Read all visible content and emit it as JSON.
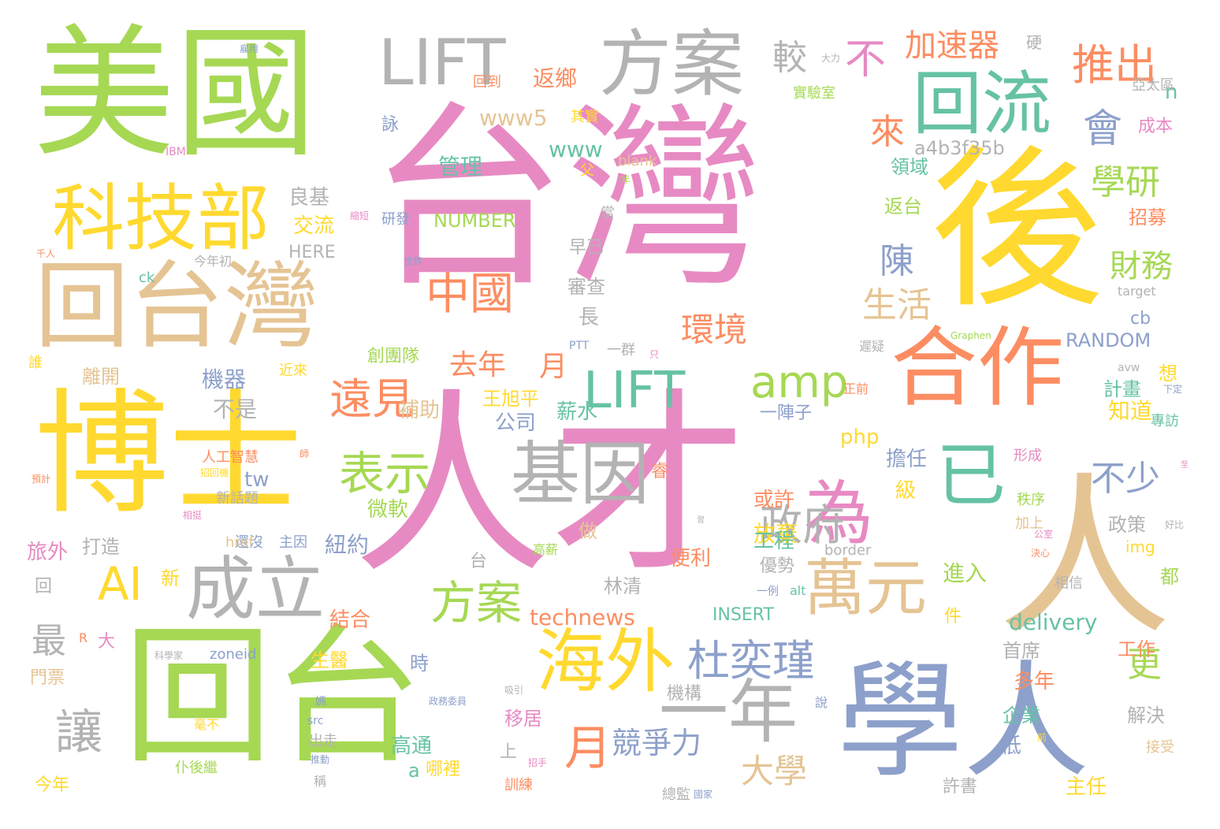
{
  "palette": {
    "pink": "#e78ac3",
    "green": "#a6d854",
    "yellow": "#ffd92f",
    "orange": "#fc8d62",
    "blue": "#8da0cb",
    "teal": "#66c2a5",
    "tan": "#e5c494",
    "gray": "#b3b3b3"
  },
  "words": [
    {
      "text": "台灣",
      "color": "pink",
      "size": 250
    },
    {
      "text": "人才",
      "color": "pink",
      "size": 250
    },
    {
      "text": "美國",
      "color": "green",
      "size": 180
    },
    {
      "text": "博士",
      "color": "yellow",
      "size": 170
    },
    {
      "text": "後",
      "color": "yellow",
      "size": 220
    },
    {
      "text": "學人",
      "color": "blue",
      "size": 160
    },
    {
      "text": "人",
      "color": "tan",
      "size": 220
    },
    {
      "text": "回台",
      "color": "green",
      "size": 190
    },
    {
      "text": "回台灣",
      "color": "tan",
      "size": 120
    },
    {
      "text": "合作",
      "color": "orange",
      "size": 110
    },
    {
      "text": "科技部",
      "color": "yellow",
      "size": 92
    },
    {
      "text": "方案",
      "color": "gray",
      "size": 92
    },
    {
      "text": "LIFT",
      "color": "gray",
      "size": 80
    },
    {
      "text": "回流",
      "color": "teal",
      "size": 88
    },
    {
      "text": "基因",
      "color": "gray",
      "size": 88
    },
    {
      "text": "成立",
      "color": "gray",
      "size": 88
    },
    {
      "text": "海外",
      "color": "yellow",
      "size": 88
    },
    {
      "text": "一年",
      "color": "gray",
      "size": 88
    },
    {
      "text": "萬元",
      "color": "tan",
      "size": 78
    },
    {
      "text": "已",
      "color": "teal",
      "size": 88
    },
    {
      "text": "為",
      "color": "pink",
      "size": 88
    },
    {
      "text": "AI",
      "color": "yellow",
      "size": 58
    },
    {
      "text": "LIFT",
      "color": "teal",
      "size": 64
    },
    {
      "text": "amp",
      "color": "green",
      "size": 56
    },
    {
      "text": "中國",
      "color": "orange",
      "size": 56
    },
    {
      "text": "表示",
      "color": "green",
      "size": 58
    },
    {
      "text": "方案",
      "color": "green",
      "size": 58
    },
    {
      "text": "遠見",
      "color": "orange",
      "size": 54
    },
    {
      "text": "杜奕瑾",
      "color": "blue",
      "size": 54
    },
    {
      "text": "政府",
      "color": "gray",
      "size": 54
    },
    {
      "text": "推出",
      "color": "orange",
      "size": 54
    },
    {
      "text": "不",
      "color": "pink",
      "size": 52
    },
    {
      "text": "會",
      "color": "blue",
      "size": 50
    },
    {
      "text": "較",
      "color": "gray",
      "size": 44
    },
    {
      "text": "來",
      "color": "orange",
      "size": 44
    },
    {
      "text": "學研",
      "color": "green",
      "size": 44
    },
    {
      "text": "加速器",
      "color": "orange",
      "size": 40
    },
    {
      "text": "陳",
      "color": "blue",
      "size": 44
    },
    {
      "text": "生活",
      "color": "tan",
      "size": 44
    },
    {
      "text": "環境",
      "color": "orange",
      "size": 42
    },
    {
      "text": "財務",
      "color": "green",
      "size": 40
    },
    {
      "text": "不少",
      "color": "blue",
      "size": 44
    },
    {
      "text": "去年",
      "color": "orange",
      "size": 36
    },
    {
      "text": "月",
      "color": "orange",
      "size": 36
    },
    {
      "text": "月",
      "color": "orange",
      "size": 60
    },
    {
      "text": "競爭力",
      "color": "blue",
      "size": 38
    },
    {
      "text": "大學",
      "color": "tan",
      "size": 42
    },
    {
      "text": "更",
      "color": "green",
      "size": 44
    },
    {
      "text": "讓",
      "color": "gray",
      "size": 60
    },
    {
      "text": "最",
      "color": "gray",
      "size": 44
    },
    {
      "text": "www5",
      "color": "tan",
      "size": 28
    },
    {
      "text": "www",
      "color": "teal",
      "size": 28
    },
    {
      "text": "返鄉",
      "color": "orange",
      "size": 28
    },
    {
      "text": "管理",
      "color": "teal",
      "size": 28
    },
    {
      "text": "NUMBER",
      "color": "green",
      "size": 24
    },
    {
      "text": "a4b3f35b",
      "color": "gray",
      "size": 24
    },
    {
      "text": "technews",
      "color": "orange",
      "size": 28
    },
    {
      "text": "delivery",
      "color": "teal",
      "size": 28
    },
    {
      "text": "RANDOM",
      "color": "blue",
      "size": 24
    },
    {
      "text": "INSERT",
      "color": "teal",
      "size": 22
    },
    {
      "text": "php",
      "color": "yellow",
      "size": 26
    },
    {
      "text": "tw",
      "color": "blue",
      "size": 26
    },
    {
      "text": "HERE",
      "color": "gray",
      "size": 22
    },
    {
      "text": "交流",
      "color": "yellow",
      "size": 26
    },
    {
      "text": "良基",
      "color": "gray",
      "size": 26
    },
    {
      "text": "機器",
      "color": "blue",
      "size": 28
    },
    {
      "text": "不是",
      "color": "gray",
      "size": 28
    },
    {
      "text": "補助",
      "color": "tan",
      "size": 26
    },
    {
      "text": "公司",
      "color": "blue",
      "size": 26
    },
    {
      "text": "薪水",
      "color": "teal",
      "size": 26
    },
    {
      "text": "王旭平",
      "color": "yellow",
      "size": 24
    },
    {
      "text": "創團隊",
      "color": "green",
      "size": 22
    },
    {
      "text": "離開",
      "color": "tan",
      "size": 24
    },
    {
      "text": "審查",
      "color": "gray",
      "size": 24
    },
    {
      "text": "長",
      "color": "gray",
      "size": 26
    },
    {
      "text": "早已",
      "color": "gray",
      "size": 22
    },
    {
      "text": "一群",
      "color": "gray",
      "size": 18
    },
    {
      "text": "一陣子",
      "color": "blue",
      "size": 22
    },
    {
      "text": "擔任",
      "color": "blue",
      "size": 26
    },
    {
      "text": "或許",
      "color": "orange",
      "size": 26
    },
    {
      "text": "放棄",
      "color": "yellow",
      "size": 28
    },
    {
      "text": "工程",
      "color": "teal",
      "size": 26
    },
    {
      "text": "優勢",
      "color": "gray",
      "size": 22
    },
    {
      "text": "進入",
      "color": "green",
      "size": 28
    },
    {
      "text": "級",
      "color": "yellow",
      "size": 26
    },
    {
      "text": "秩序",
      "color": "green",
      "size": 18
    },
    {
      "text": "加上",
      "color": "tan",
      "size": 18
    },
    {
      "text": "知道",
      "color": "yellow",
      "size": 28
    },
    {
      "text": "計畫",
      "color": "teal",
      "size": 24
    },
    {
      "text": "想",
      "color": "yellow",
      "size": 24
    },
    {
      "text": "政策",
      "color": "gray",
      "size": 24
    },
    {
      "text": "都",
      "color": "green",
      "size": 24
    },
    {
      "text": "img",
      "color": "yellow",
      "size": 20
    },
    {
      "text": "cb",
      "color": "blue",
      "size": 22
    },
    {
      "text": "n",
      "color": "teal",
      "size": 26
    },
    {
      "text": "硬",
      "color": "gray",
      "size": 20
    },
    {
      "text": "亞太區",
      "color": "gray",
      "size": 18
    },
    {
      "text": "成本",
      "color": "pink",
      "size": 22
    },
    {
      "text": "實驗室",
      "color": "green",
      "size": 18
    },
    {
      "text": "領域",
      "color": "teal",
      "size": 24
    },
    {
      "text": "返台",
      "color": "green",
      "size": 24
    },
    {
      "text": "招募",
      "color": "orange",
      "size": 24
    },
    {
      "text": "其實",
      "color": "yellow",
      "size": 18
    },
    {
      "text": "詠",
      "color": "blue",
      "size": 22
    },
    {
      "text": "回到",
      "color": "orange",
      "size": 18
    },
    {
      "text": "大力",
      "color": "gray",
      "size": 12
    },
    {
      "text": "父",
      "color": "yellow",
      "size": 18
    },
    {
      "text": "blank",
      "color": "tan",
      "size": 18
    },
    {
      "text": "年",
      "color": "green",
      "size": 12
    },
    {
      "text": "當",
      "color": "gray",
      "size": 18
    },
    {
      "text": "研發",
      "color": "blue",
      "size": 18
    },
    {
      "text": "target",
      "color": "gray",
      "size": 16
    },
    {
      "text": "Graphen",
      "color": "green",
      "size": 12
    },
    {
      "text": "遲疑",
      "color": "gray",
      "size": 16
    },
    {
      "text": "avw",
      "color": "gray",
      "size": 14
    },
    {
      "text": "下定",
      "color": "blue",
      "size": 12
    },
    {
      "text": "專訪",
      "color": "teal",
      "size": 18
    },
    {
      "text": "形成",
      "color": "pink",
      "size": 18
    },
    {
      "text": "正前",
      "color": "orange",
      "size": 16
    },
    {
      "text": "公室",
      "color": "pink",
      "size": 12
    },
    {
      "text": "決心",
      "color": "orange",
      "size": 12
    },
    {
      "text": "好比",
      "color": "gray",
      "size": 12
    },
    {
      "text": "border",
      "color": "gray",
      "size": 18
    },
    {
      "text": "一例",
      "color": "blue",
      "size": 14
    },
    {
      "text": "alt",
      "color": "teal",
      "size": 16
    },
    {
      "text": "相信",
      "color": "gray",
      "size": 18
    },
    {
      "text": "首席",
      "color": "gray",
      "size": 24
    },
    {
      "text": "多年",
      "color": "orange",
      "size": 26
    },
    {
      "text": "企業",
      "color": "teal",
      "size": 24
    },
    {
      "text": "解決",
      "color": "gray",
      "size": 24
    },
    {
      "text": "工作",
      "color": "orange",
      "size": 24
    },
    {
      "text": "低",
      "color": "blue",
      "size": 26
    },
    {
      "text": "接受",
      "color": "tan",
      "size": 18
    },
    {
      "text": "許書",
      "color": "gray",
      "size": 22
    },
    {
      "text": "主任",
      "color": "yellow",
      "size": 26
    },
    {
      "text": "件",
      "color": "yellow",
      "size": 22
    },
    {
      "text": "便利",
      "color": "orange",
      "size": 26
    },
    {
      "text": "林清",
      "color": "gray",
      "size": 24
    },
    {
      "text": "做",
      "color": "tan",
      "size": 24
    },
    {
      "text": "高薪",
      "color": "green",
      "size": 16
    },
    {
      "text": "睿",
      "color": "orange",
      "size": 22
    },
    {
      "text": "只",
      "color": "pink",
      "size": 12
    },
    {
      "text": "PTT",
      "color": "blue",
      "size": 14
    },
    {
      "text": "近來",
      "color": "yellow",
      "size": 18
    },
    {
      "text": "人工智慧",
      "color": "orange",
      "size": 18
    },
    {
      "text": "師",
      "color": "orange",
      "size": 12
    },
    {
      "text": "招回機",
      "color": "yellow",
      "size": 12
    },
    {
      "text": "新話題",
      "color": "gray",
      "size": 18
    },
    {
      "text": "打造",
      "color": "gray",
      "size": 24
    },
    {
      "text": "還沒",
      "color": "blue",
      "size": 18
    },
    {
      "text": "主因",
      "color": "blue",
      "size": 18
    },
    {
      "text": "href",
      "color": "tan",
      "size": 18
    },
    {
      "text": "紐約",
      "color": "blue",
      "size": 28
    },
    {
      "text": "微軟",
      "color": "green",
      "size": 26
    },
    {
      "text": "台",
      "color": "gray",
      "size": 22
    },
    {
      "text": "回",
      "color": "gray",
      "size": 22
    },
    {
      "text": "新",
      "color": "yellow",
      "size": 24
    },
    {
      "text": "結合",
      "color": "orange",
      "size": 26
    },
    {
      "text": "旅外",
      "color": "pink",
      "size": 26
    },
    {
      "text": "大",
      "color": "pink",
      "size": 22
    },
    {
      "text": "R",
      "color": "orange",
      "size": 16
    },
    {
      "text": "生醫",
      "color": "yellow",
      "size": 24
    },
    {
      "text": "時",
      "color": "blue",
      "size": 24
    },
    {
      "text": "zoneid",
      "color": "blue",
      "size": 18
    },
    {
      "text": "科學家",
      "color": "gray",
      "size": 12
    },
    {
      "text": "門票",
      "color": "tan",
      "size": 22
    },
    {
      "text": "今年",
      "color": "yellow",
      "size": 22
    },
    {
      "text": "仆後繼",
      "color": "green",
      "size": 18
    },
    {
      "text": "毫不",
      "color": "yellow",
      "size": 16
    },
    {
      "text": "src",
      "color": "blue",
      "size": 14
    },
    {
      "text": "出走",
      "color": "gray",
      "size": 18
    },
    {
      "text": "稱",
      "color": "gray",
      "size": 16
    },
    {
      "text": "媽",
      "color": "blue",
      "size": 14
    },
    {
      "text": "推動",
      "color": "blue",
      "size": 12
    },
    {
      "text": "高通",
      "color": "teal",
      "size": 26
    },
    {
      "text": "a",
      "color": "teal",
      "size": 24
    },
    {
      "text": "哪裡",
      "color": "yellow",
      "size": 22
    },
    {
      "text": "上",
      "color": "gray",
      "size": 22
    },
    {
      "text": "移居",
      "color": "pink",
      "size": 24
    },
    {
      "text": "機構",
      "color": "gray",
      "size": 22
    },
    {
      "text": "政務委員",
      "color": "blue",
      "size": 12
    },
    {
      "text": "吸引",
      "color": "gray",
      "size": 12
    },
    {
      "text": "招手",
      "color": "pink",
      "size": 12
    },
    {
      "text": "訓練",
      "color": "orange",
      "size": 18
    },
    {
      "text": "總監",
      "color": "gray",
      "size": 18
    },
    {
      "text": "國家",
      "color": "blue",
      "size": 12
    },
    {
      "text": "說",
      "color": "blue",
      "size": 16
    },
    {
      "text": "前",
      "color": "yellow",
      "size": 12
    },
    {
      "text": "誰",
      "color": "yellow",
      "size": 18
    },
    {
      "text": "預計",
      "color": "orange",
      "size": 12
    },
    {
      "text": "相挺",
      "color": "pink",
      "size": 12
    },
    {
      "text": "今年初",
      "color": "gray",
      "size": 16
    },
    {
      "text": "千人",
      "color": "orange",
      "size": 12
    },
    {
      "text": "ck",
      "color": "teal",
      "size": 18
    },
    {
      "text": "IBM",
      "color": "pink",
      "size": 14
    },
    {
      "text": "縮短",
      "color": "pink",
      "size": 12
    },
    {
      "text": "世界",
      "color": "blue",
      "size": 12
    },
    {
      "text": "雇用",
      "color": "blue",
      "size": 12
    },
    {
      "text": "至",
      "color": "pink",
      "size": 10
    },
    {
      "text": "習",
      "color": "gray",
      "size": 10
    }
  ]
}
